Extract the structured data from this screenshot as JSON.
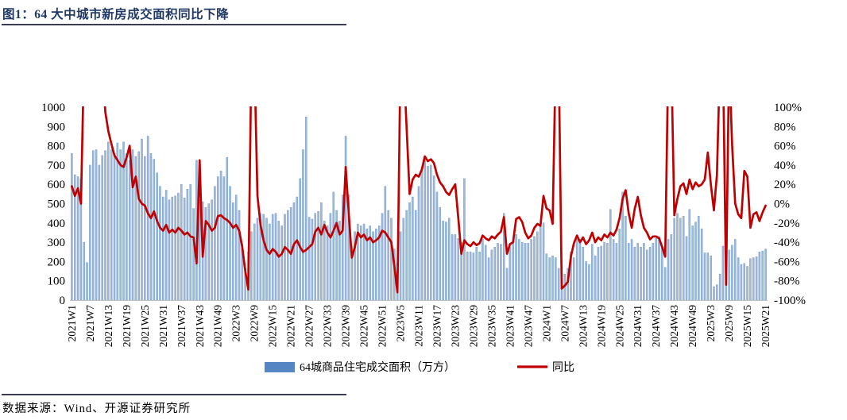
{
  "title": "图1：64 大中城市新房成交面积同比下降",
  "footer": "数据来源：Wind、开源证券研究所",
  "colors": {
    "title": "#1F3864",
    "bar_fill": "#9DB9DC",
    "bar_edge": "#6D94C4",
    "legend_bar_swatch": "#5585C2",
    "line": "#C00000",
    "axis_line": "#BFBFBF"
  },
  "chart_data": {
    "type": "bar+line combo, weekly",
    "title": "64大中城市新房成交面积同比下降",
    "x_start": "2021W1",
    "x_end": "2025W21",
    "weeks_per_year": {
      "2021": 52,
      "2022": 52,
      "2023": 52,
      "2024": 52,
      "2025": 21
    },
    "x_tick_labels": [
      "2021W1",
      "2021W7",
      "2021W13",
      "2021W19",
      "2021W25",
      "2021W31",
      "2021W37",
      "2021W43",
      "2021W49",
      "2022W3",
      "2022W9",
      "2022W15",
      "2022W21",
      "2022W27",
      "2022W33",
      "2022W39",
      "2022W45",
      "2022W51",
      "2023W5",
      "2023W11",
      "2023W17",
      "2023W23",
      "2023W29",
      "2023W35",
      "2023W41",
      "2023W47",
      "2024W1",
      "2024W7",
      "2024W13",
      "2024W19",
      "2024W25",
      "2024W31",
      "2024W37",
      "2024W43",
      "2024W49",
      "2025W3",
      "2025W9",
      "2025W15",
      "2025W21"
    ],
    "x_tick_every": 6,
    "left_axis": {
      "min": 0,
      "max": 1000,
      "step": 100,
      "tick_labels": [
        "0",
        "100",
        "200",
        "300",
        "400",
        "500",
        "600",
        "700",
        "800",
        "900",
        "1000"
      ]
    },
    "right_axis": {
      "min": -100,
      "max": 100,
      "step": 20,
      "tick_labels": [
        "100%",
        "80%",
        "60%",
        "40%",
        "20%",
        "0%",
        "-20%",
        "-40%",
        "-60%",
        "-80%",
        "-100%"
      ]
    },
    "grid": false,
    "legend_position": "bottom-center",
    "clipped_above_pct": 100,
    "series": [
      {
        "name": "64城商品住宅成交面积（万方）",
        "type": "bar",
        "axis": "left",
        "color": "#9DB9DC",
        "values": [
          760,
          650,
          640,
          630,
          300,
          195,
          700,
          775,
          780,
          700,
          750,
          775,
          820,
          780,
          760,
          815,
          780,
          820,
          760,
          725,
          780,
          745,
          770,
          835,
          745,
          850,
          760,
          730,
          660,
          590,
          535,
          570,
          520,
          535,
          540,
          555,
          600,
          530,
          575,
          600,
          475,
          725,
          520,
          510,
          480,
          500,
          520,
          590,
          640,
          670,
          640,
          740,
          590,
          505,
          545,
          465,
          290,
          165,
          250,
          355,
          395,
          425,
          450,
          445,
          425,
          395,
          445,
          450,
          410,
          385,
          445,
          465,
          480,
          505,
          535,
          630,
          780,
          950,
          430,
          420,
          450,
          460,
          505,
          410,
          385,
          450,
          560,
          465,
          410,
          545,
          850,
          545,
          280,
          355,
          395,
          385,
          395,
          370,
          385,
          355,
          370,
          385,
          450,
          590,
          465,
          425,
          265,
          190,
          355,
          425,
          465,
          505,
          535,
          465,
          590,
          685,
          725,
          695,
          700,
          645,
          560,
          480,
          410,
          405,
          425,
          340,
          340,
          320,
          300,
          630,
          250,
          250,
          245,
          275,
          250,
          315,
          285,
          220,
          260,
          275,
          295,
          290,
          450,
          165,
          275,
          295,
          340,
          315,
          300,
          295,
          295,
          315,
          330,
          355,
          385,
          400,
          240,
          220,
          230,
          220,
          165,
          110,
          135,
          165,
          250,
          220,
          315,
          315,
          275,
          200,
          185,
          290,
          230,
          275,
          280,
          300,
          295,
          470,
          315,
          295,
          370,
          560,
          435,
          295,
          315,
          275,
          295,
          275,
          295,
          260,
          275,
          295,
          320,
          330,
          275,
          170,
          315,
          340,
          425,
          450,
          425,
          435,
          330,
          470,
          385,
          405,
          435,
          370,
          245,
          245,
          230,
          70,
          80,
          135,
          280,
          285,
          260,
          285,
          315,
          220,
          185,
          190,
          175,
          215,
          220,
          225,
          250,
          255,
          265
        ]
      },
      {
        "name": "同比",
        "type": "line",
        "axis": "right",
        "color": "#C00000",
        "values": [
          18,
          8,
          16,
          0,
          150,
          150,
          150,
          150,
          150,
          150,
          150,
          95,
          75,
          62,
          50,
          45,
          40,
          38,
          48,
          60,
          17,
          28,
          5,
          0,
          -2,
          -10,
          -15,
          -8,
          -18,
          -25,
          -28,
          -22,
          -30,
          -27,
          -30,
          -25,
          -28,
          -32,
          -30,
          -34,
          -35,
          -62,
          45,
          -55,
          -18,
          -22,
          -28,
          -25,
          -13,
          -12,
          -15,
          -17,
          -20,
          -25,
          -22,
          -28,
          -45,
          -70,
          -89,
          150,
          150,
          8,
          -22,
          -38,
          -48,
          -52,
          -47,
          -50,
          -55,
          -52,
          -45,
          -48,
          -52,
          -42,
          -38,
          -45,
          -50,
          -48,
          -45,
          -42,
          -29,
          -25,
          -32,
          -22,
          -30,
          -35,
          -28,
          -20,
          -32,
          -28,
          38,
          -10,
          -56,
          -45,
          -30,
          -35,
          -32,
          -38,
          -35,
          -40,
          -38,
          -35,
          -28,
          -30,
          -35,
          -40,
          -65,
          -92,
          150,
          150,
          80,
          10,
          25,
          30,
          28,
          35,
          49,
          44,
          46,
          42,
          30,
          22,
          18,
          12,
          9,
          15,
          20,
          -15,
          -52,
          -38,
          -42,
          -44,
          -40,
          -43,
          -41,
          -33,
          -36,
          -38,
          -34,
          -36,
          -32,
          -29,
          -14,
          -52,
          -42,
          -40,
          -16,
          -14,
          -19,
          -30,
          -36,
          -33,
          -25,
          -21,
          -23,
          8,
          -5,
          -7,
          -21,
          150,
          150,
          -88,
          -85,
          -81,
          -55,
          -41,
          -33,
          -40,
          -35,
          -42,
          -38,
          -30,
          -40,
          -35,
          -38,
          -32,
          -35,
          -30,
          -33,
          -27,
          -15,
          5,
          14,
          -10,
          -25,
          -5,
          7,
          -12,
          -25,
          -30,
          -37,
          -34,
          -34,
          -36,
          -45,
          -55,
          150,
          150,
          -12,
          5,
          18,
          21,
          10,
          25,
          15,
          22,
          18,
          20,
          25,
          53,
          20,
          -7,
          30,
          150,
          150,
          -84,
          150,
          60,
          0,
          -11,
          -15,
          34,
          28,
          -25,
          -11,
          -9,
          -18,
          -9,
          -2
        ]
      }
    ]
  }
}
